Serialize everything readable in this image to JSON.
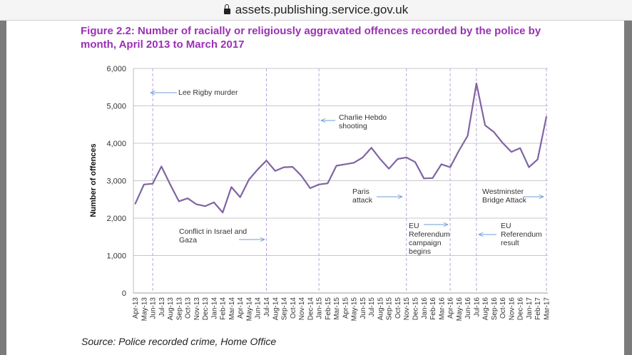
{
  "browser": {
    "url": "assets.publishing.service.gov.uk",
    "lock_icon": "lock-icon"
  },
  "figure": {
    "title": "Figure 2.2: Number of racially or religiously aggravated offences recorded by the police by month, April 2013 to March 2017",
    "source": "Source: Police recorded crime, Home Office"
  },
  "colors": {
    "title": "#9b30b5",
    "line": "#8064a2",
    "event_line": "#b9a3d9",
    "arrow": "#6f9bd6",
    "grid": "#c8c8c8"
  },
  "chart_data": {
    "type": "line",
    "title": "Figure 2.2: Number of racially or religiously aggravated offences recorded by the police by month, April 2013 to March 2017",
    "xlabel": "",
    "ylabel": "Number of offences",
    "ylim": [
      0,
      6000
    ],
    "yticks": [
      0,
      1000,
      2000,
      3000,
      4000,
      5000,
      6000
    ],
    "ytick_labels": [
      "0",
      "1,000",
      "2,000",
      "3,000",
      "4,000",
      "5,000",
      "6,000"
    ],
    "grid": true,
    "categories": [
      "Apr-13",
      "May-13",
      "Jun-13",
      "Jul-13",
      "Aug-13",
      "Sep-13",
      "Oct-13",
      "Nov-13",
      "Dec-13",
      "Jan-14",
      "Feb-14",
      "Mar-14",
      "Apr-14",
      "May-14",
      "Jun-14",
      "Jul-14",
      "Aug-14",
      "Sep-14",
      "Oct-14",
      "Nov-14",
      "Dec-14",
      "Jan-15",
      "Feb-15",
      "Mar-15",
      "Apr-15",
      "May-15",
      "Jun-15",
      "Jul-15",
      "Aug-15",
      "Sep-15",
      "Oct-15",
      "Nov-15",
      "Dec-15",
      "Jan-16",
      "Feb-16",
      "Mar-16",
      "Apr-16",
      "May-16",
      "Jun-16",
      "Jul-16",
      "Aug-16",
      "Sep-16",
      "Oct-16",
      "Nov-16",
      "Dec-16",
      "Jan-17",
      "Feb-17",
      "Mar-17"
    ],
    "series": [
      {
        "name": "Racially or religiously aggravated offences",
        "values": [
          2380,
          2900,
          2920,
          3380,
          2900,
          2450,
          2530,
          2370,
          2320,
          2420,
          2150,
          2830,
          2560,
          3030,
          3300,
          3540,
          3260,
          3360,
          3370,
          3130,
          2800,
          2900,
          2930,
          3400,
          3440,
          3480,
          3620,
          3880,
          3580,
          3320,
          3580,
          3620,
          3500,
          3060,
          3070,
          3440,
          3360,
          3800,
          4200,
          5600,
          4480,
          4300,
          4010,
          3770,
          3870,
          3360,
          3570,
          4710
        ]
      }
    ],
    "events": [
      {
        "month": "Jun-13",
        "label": [
          "Lee Rigby murder"
        ],
        "arrow": "left"
      },
      {
        "month": "Jul-14",
        "label": [
          "Conflict in Israel and",
          "Gaza"
        ],
        "arrow": "right"
      },
      {
        "month": "Jan-15",
        "label": [
          "Charlie Hebdo",
          "shooting"
        ],
        "arrow": "left"
      },
      {
        "month": "Nov-15",
        "label": [
          "Paris",
          "attack"
        ],
        "arrow": "right"
      },
      {
        "month": "Apr-16",
        "label": [
          "EU",
          "Referendum",
          "campaign",
          "begins"
        ],
        "arrow": "right"
      },
      {
        "month": "Jul-16",
        "label": [
          "EU",
          "Referendum",
          "result"
        ],
        "arrow": "left"
      },
      {
        "month": "Mar-17",
        "label": [
          "Westminster",
          "Bridge Attack"
        ],
        "arrow": "right"
      }
    ]
  }
}
